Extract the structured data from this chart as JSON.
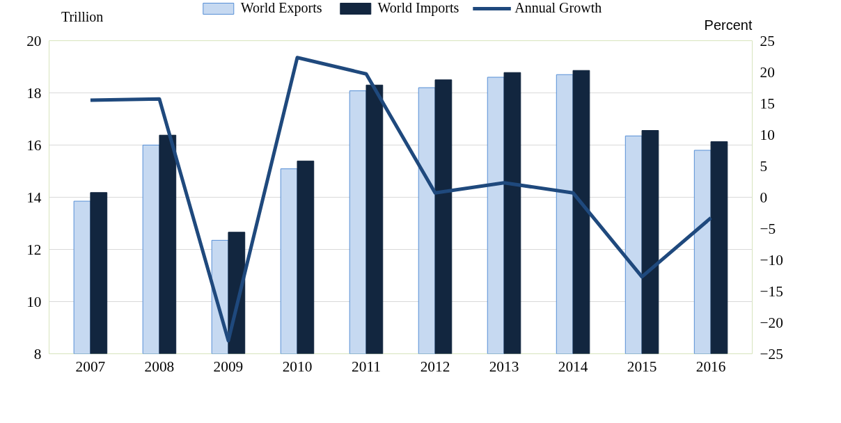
{
  "chart_data": {
    "type": "bar",
    "ylabel": "Trillion",
    "y2label": "Percent",
    "categories": [
      "2007",
      "2008",
      "2009",
      "2010",
      "2011",
      "2012",
      "2013",
      "2014",
      "2015",
      "2016"
    ],
    "series": [
      {
        "name": "World Exports",
        "color": "#c6d9f1",
        "values": [
          13.85,
          16.0,
          12.35,
          15.09,
          18.08,
          18.2,
          18.6,
          18.7,
          16.35,
          15.8
        ]
      },
      {
        "name": "World Imports",
        "color": "#12263f",
        "values": [
          14.18,
          16.38,
          12.66,
          15.39,
          18.3,
          18.5,
          18.78,
          18.86,
          16.56,
          16.13
        ]
      },
      {
        "name": "Annual Growth",
        "type": "line",
        "axis": "y2",
        "color": "#1f497d",
        "values": [
          15.5,
          15.7,
          -22.9,
          22.3,
          19.7,
          0.7,
          2.3,
          0.7,
          -12.7,
          -3.3
        ]
      }
    ],
    "ylim": [
      8,
      20
    ],
    "yticks": [
      8,
      10,
      12,
      14,
      16,
      18,
      20
    ],
    "y2lim": [
      -25,
      25
    ],
    "y2ticks": [
      -25,
      -20,
      -15,
      -10,
      -5,
      0,
      5,
      10,
      15,
      20,
      25
    ],
    "grid": "y",
    "legend": "top"
  }
}
